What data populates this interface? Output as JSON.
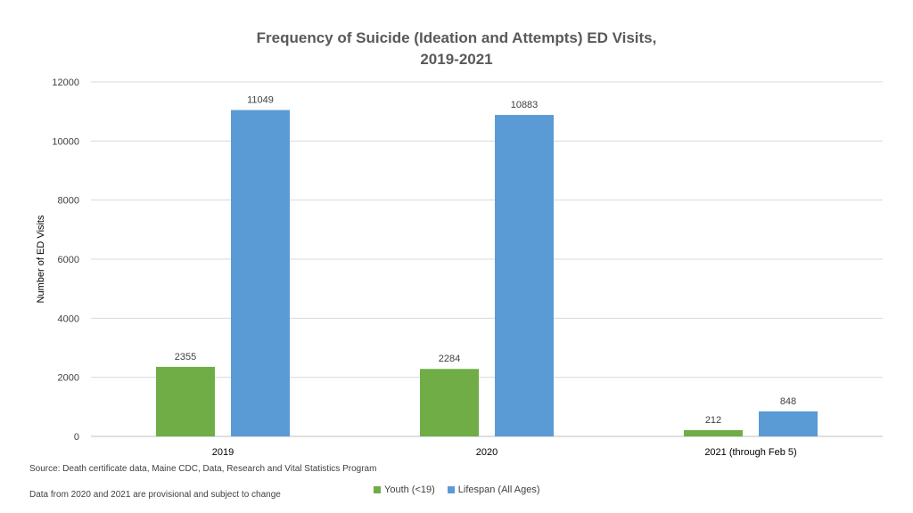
{
  "chart_data": {
    "type": "bar",
    "title_lines": [
      "Frequency of Suicide (Ideation and Attempts) ED Visits,",
      "2019-2021"
    ],
    "ylabel": "Number of ED Visits",
    "xlabel": "",
    "ylim": [
      0,
      12000
    ],
    "yticks": [
      0,
      2000,
      4000,
      6000,
      8000,
      10000,
      12000
    ],
    "grid": true,
    "legend_position": "bottom",
    "categories": [
      "2019",
      "2020",
      "2021 (through Feb 5)"
    ],
    "series": [
      {
        "name": "Youth (<19)",
        "color": "#70ad47",
        "values": [
          2355,
          2284,
          212
        ]
      },
      {
        "name": "Lifespan (All Ages)",
        "color": "#5b9bd5",
        "values": [
          11049,
          10883,
          848
        ]
      }
    ]
  },
  "notes": {
    "source": "Source: Death certificate data, Maine CDC, Data, Research and Vital Statistics Program",
    "provisional": "Data from 2020 and 2021 are provisional and subject to change"
  }
}
